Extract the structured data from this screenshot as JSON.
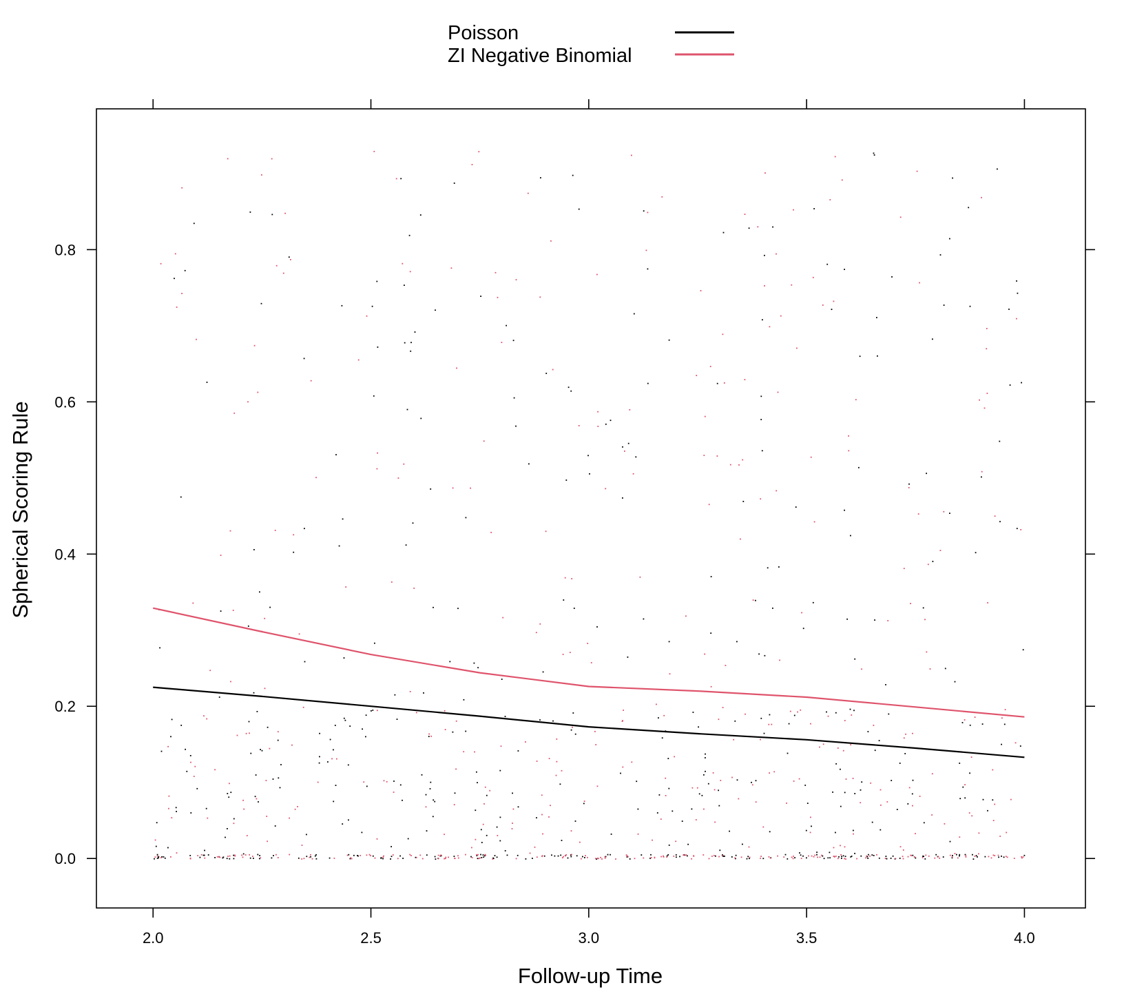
{
  "chart_data": {
    "type": "scatter",
    "title": "",
    "xlabel": "Follow-up Time",
    "ylabel": "Spherical Scoring Rule",
    "xlim": [
      1.87,
      4.14
    ],
    "ylim": [
      -0.065,
      0.985
    ],
    "xticks": [
      2.0,
      2.5,
      3.0,
      3.5,
      4.0
    ],
    "xtick_labels": [
      "2.0",
      "2.5",
      "3.0",
      "3.5",
      "4.0"
    ],
    "yticks": [
      0.0,
      0.2,
      0.4,
      0.6,
      0.8
    ],
    "ytick_labels": [
      "0.0",
      "0.2",
      "0.4",
      "0.6",
      "0.8"
    ],
    "grid": false,
    "legend": {
      "placement": "top-center",
      "entries": [
        "Poisson",
        "ZI Negative Binomial"
      ]
    },
    "points_note_count_per_series": 520,
    "series": [
      {
        "name": "Poisson",
        "color": "#000000",
        "smooth_line": {
          "x": [
            2.0,
            2.25,
            2.5,
            2.75,
            3.0,
            3.25,
            3.5,
            3.75,
            4.0
          ],
          "y": [
            0.225,
            0.213,
            0.2,
            0.187,
            0.173,
            0.164,
            0.156,
            0.145,
            0.133
          ]
        }
      },
      {
        "name": "ZI Negative Binomial",
        "color": "#DF536B",
        "smooth_line": {
          "x": [
            2.0,
            2.25,
            2.5,
            2.75,
            3.0,
            3.25,
            3.5,
            3.75,
            4.0
          ],
          "y": [
            0.329,
            0.298,
            0.268,
            0.244,
            0.226,
            0.22,
            0.212,
            0.199,
            0.186
          ]
        }
      }
    ]
  }
}
